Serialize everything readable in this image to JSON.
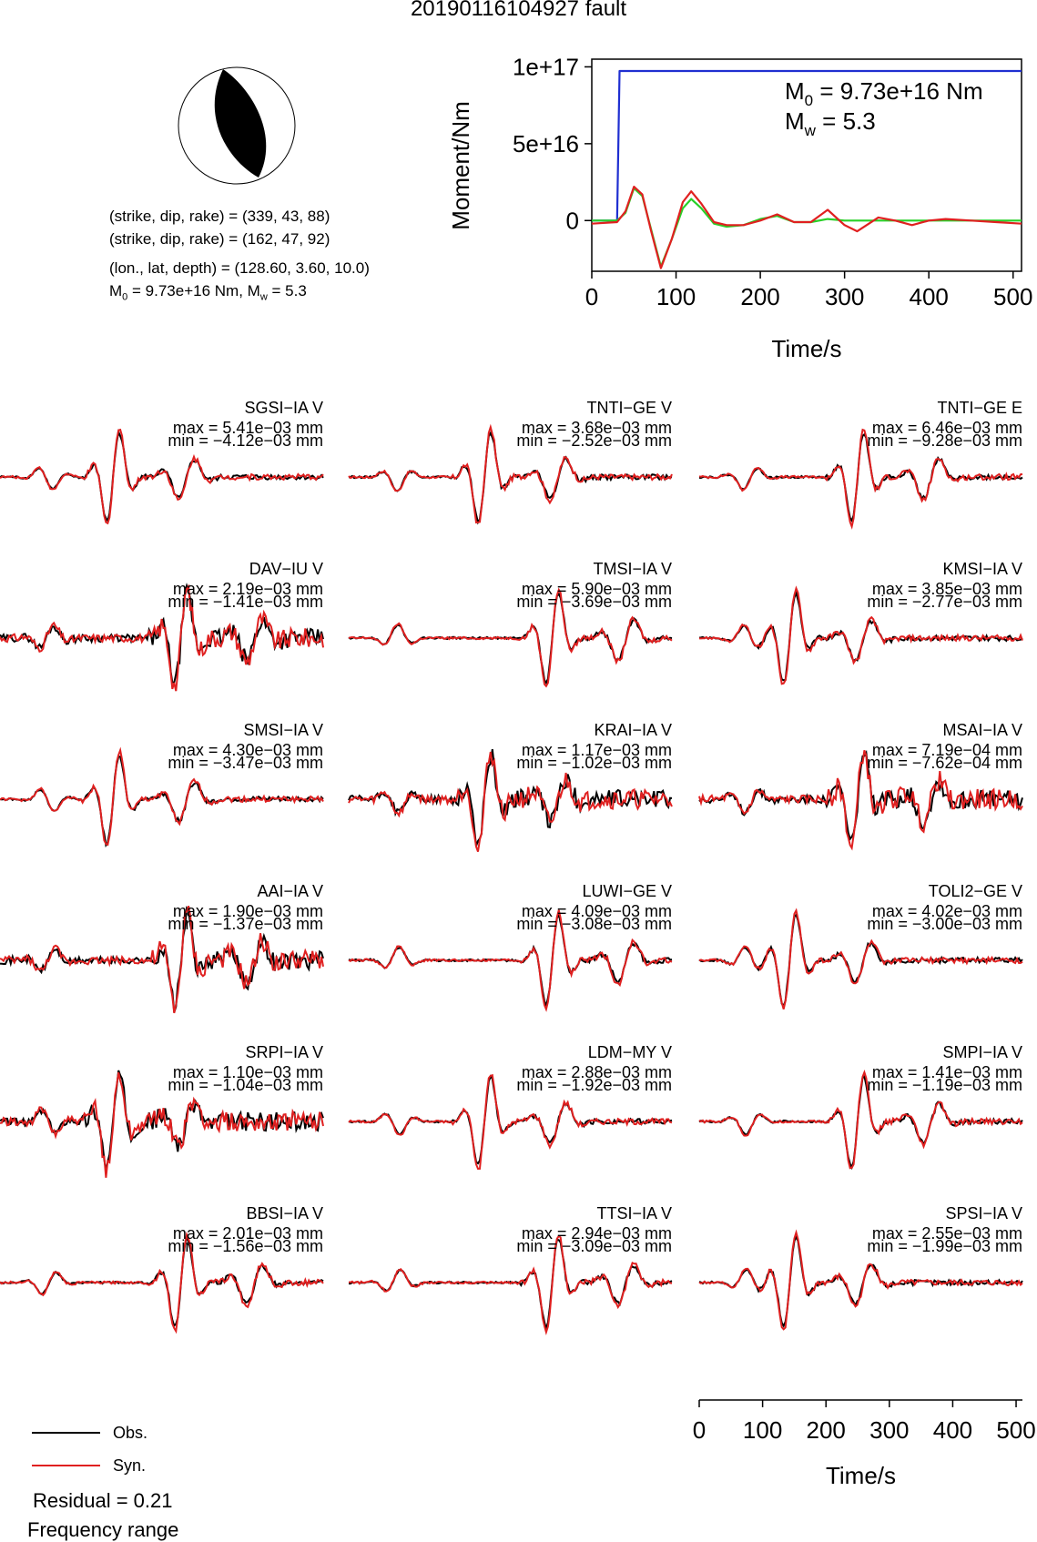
{
  "title": "20190116104927 fault",
  "mechanism": {
    "plane1": "(strike, dip, rake) = (339, 43, 88)",
    "plane2": "(strike, dip, rake) = (162, 47, 92)",
    "location": "(lon., lat, depth) = (128.60, 3.60, 10.0)",
    "m0_prefix": "M",
    "m0_sub": "0",
    "m0_value": " = 9.73e+16 Nm, M",
    "mw_sub": "w",
    "mw_value": " = 5.3"
  },
  "chart_data": [
    {
      "type": "line",
      "title": "",
      "xlabel": "Time/s",
      "ylabel": "Moment/Nm",
      "xlim": [
        0,
        510
      ],
      "ylim": [
        -3.3e+16,
        1.05e+17
      ],
      "xticks": [
        "0",
        "100",
        "200",
        "300",
        "400",
        "500"
      ],
      "xtick_values": [
        0,
        100,
        200,
        300,
        400,
        500
      ],
      "yticks": [
        "1e+17",
        "5e+16",
        "0"
      ],
      "ytick_values": [
        1e+17,
        5e+16,
        0
      ],
      "annotations": {
        "m0_label": "M",
        "m0_sub": "0",
        "m0_text": " = 9.73e+16 Nm",
        "mw_label": "M",
        "mw_sub": "w",
        "mw_text": " = 5.3"
      },
      "series": [
        {
          "color": "#1f2fd1",
          "x": [
            0,
            30,
            33,
            510
          ],
          "y": [
            0,
            0,
            9.73e+16,
            9.73e+16
          ]
        },
        {
          "color": "#28d028",
          "x": [
            0,
            30,
            40,
            50,
            60,
            70,
            82,
            95,
            108,
            118,
            130,
            145,
            160,
            180,
            200,
            220,
            240,
            260,
            280,
            300,
            340,
            400,
            450,
            510
          ],
          "y": [
            0,
            0,
            5000000000000000.0,
            2.1e+16,
            1.6e+16,
            -5000000000000000.0,
            -3e+16,
            -1.2e+16,
            8000000000000000.0,
            1.4e+16,
            8000000000000000.0,
            -2000000000000000.0,
            -4000000000000000.0,
            -3000000000000000.0,
            1000000000000000.0,
            3000000000000000.0,
            -1000000000000000.0,
            -1000000000000000.0,
            1000000000000000.0,
            0,
            0,
            0,
            0,
            0
          ]
        },
        {
          "color": "#e02020",
          "x": [
            0,
            30,
            40,
            50,
            60,
            70,
            82,
            95,
            108,
            118,
            130,
            145,
            160,
            180,
            200,
            220,
            240,
            260,
            280,
            300,
            315,
            340,
            360,
            380,
            400,
            420,
            450,
            480,
            510
          ],
          "y": [
            -2000000000000000.0,
            -1000000000000000.0,
            6000000000000000.0,
            2.2e+16,
            1.7e+16,
            -6000000000000000.0,
            -3.1e+16,
            -1.2e+16,
            1.2e+16,
            1.9e+16,
            1.1e+16,
            -1000000000000000.0,
            -3000000000000000.0,
            -3000000000000000.0,
            0,
            4000000000000000.0,
            -1000000000000000.0,
            -1000000000000000.0,
            7000000000000000.0,
            -3000000000000000.0,
            -7000000000000000.0,
            2000000000000000.0,
            0,
            -3000000000000000.0,
            0,
            1000000000000000.0,
            0,
            -1000000000000000.0,
            -2000000000000000.0
          ]
        }
      ]
    },
    {
      "type": "line",
      "title": "Waveform fits",
      "xlabel": "Time/s",
      "xlim": [
        0,
        510
      ],
      "xticks": [
        "0",
        "100",
        "200",
        "300",
        "400",
        "500"
      ],
      "xtick_values": [
        0,
        100,
        200,
        300,
        400,
        500
      ],
      "series_names": [
        "Obs.",
        "Syn."
      ],
      "series_colors": [
        "#000000",
        "#e02020"
      ],
      "stations": [
        {
          "name": "SGSI−IA V",
          "max": "max = 5.41e−03 mm",
          "min": "min = −4.12e−03 mm",
          "seed": 1
        },
        {
          "name": "TNTI−GE V",
          "max": "max = 3.68e−03 mm",
          "min": "min = −2.52e−03 mm",
          "seed": 2
        },
        {
          "name": "TNTI−GE E",
          "max": "max = 6.46e−03 mm",
          "min": "min = −9.28e−03 mm",
          "seed": 3
        },
        {
          "name": "DAV−IU V",
          "max": "max = 2.19e−03 mm",
          "min": "min = −1.41e−03 mm",
          "seed": 4
        },
        {
          "name": "TMSI−IA V",
          "max": "max = 5.90e−03 mm",
          "min": "min = −3.69e−03 mm",
          "seed": 5
        },
        {
          "name": "KMSI−IA V",
          "max": "max = 3.85e−03 mm",
          "min": "min = −2.77e−03 mm",
          "seed": 6
        },
        {
          "name": "SMSI−IA V",
          "max": "max = 4.30e−03 mm",
          "min": "min = −3.47e−03 mm",
          "seed": 7
        },
        {
          "name": "KRAI−IA V",
          "max": "max = 1.17e−03 mm",
          "min": "min = −1.02e−03 mm",
          "seed": 8
        },
        {
          "name": "MSAI−IA V",
          "max": "max = 7.19e−04 mm",
          "min": "min = −7.62e−04 mm",
          "seed": 9
        },
        {
          "name": "AAI−IA V",
          "max": "max = 1.90e−03 mm",
          "min": "min = −1.37e−03 mm",
          "seed": 10
        },
        {
          "name": "LUWI−GE V",
          "max": "max = 4.09e−03 mm",
          "min": "min = −3.08e−03 mm",
          "seed": 11
        },
        {
          "name": "TOLI2−GE V",
          "max": "max = 4.02e−03 mm",
          "min": "min = −3.00e−03 mm",
          "seed": 12
        },
        {
          "name": "SRPI−IA V",
          "max": "max = 1.10e−03 mm",
          "min": "min = −1.04e−03 mm",
          "seed": 13
        },
        {
          "name": "LDM−MY V",
          "max": "max = 2.88e−03 mm",
          "min": "min = −1.92e−03 mm",
          "seed": 14
        },
        {
          "name": "SMPI−IA V",
          "max": "max = 1.41e−03 mm",
          "min": "min = −1.19e−03 mm",
          "seed": 15
        },
        {
          "name": "BBSI−IA V",
          "max": "max = 2.01e−03 mm",
          "min": "min = −1.56e−03 mm",
          "seed": 16
        },
        {
          "name": "TTSI−IA V",
          "max": "max = 2.94e−03 mm",
          "min": "min = −3.09e−03 mm",
          "seed": 17
        },
        {
          "name": "SPSI−IA V",
          "max": "max = 2.55e−03 mm",
          "min": "min = −1.99e−03 mm",
          "seed": 18
        }
      ]
    }
  ],
  "legend": {
    "obs": "Obs.",
    "syn": "Syn."
  },
  "residual": "Residual = 0.21",
  "frequency": "Frequency range"
}
